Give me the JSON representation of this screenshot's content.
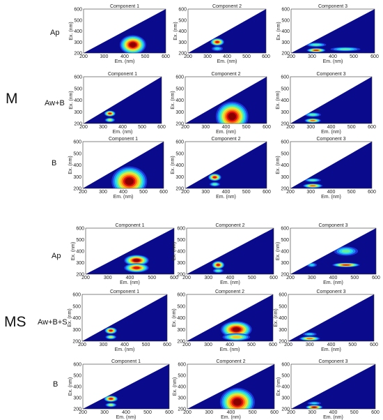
{
  "colors": {
    "background": "#0a0a8c",
    "upper_triangle": "#ffffff",
    "contour_scale": [
      "#1c34d8",
      "#1e8cf0",
      "#22d8f0",
      "#64f0a0",
      "#d6f040",
      "#ffc020",
      "#ff6a10",
      "#e01010",
      "#8a0000"
    ]
  },
  "groups": [
    {
      "label": "M",
      "rows": [
        "Ap",
        "Aw+B",
        "B"
      ]
    },
    {
      "label": "MS",
      "rows": [
        "Ap",
        "Aw+B+S",
        "B"
      ]
    }
  ],
  "chart_data": [
    {
      "type": "heatmap",
      "group": "M",
      "row": "Ap",
      "title": "Component 1",
      "xlabel": "Em. (nm)",
      "ylabel": "Ex. (nm)",
      "xlim": [
        200,
        600
      ],
      "ylim": [
        200,
        600
      ],
      "xticks": [
        200,
        300,
        400,
        500,
        600
      ],
      "yticks": [
        200,
        300,
        400,
        500,
        600
      ],
      "peaks": [
        {
          "em": 440,
          "ex": 275,
          "sx": 40,
          "sy": 55,
          "amp": 1.0
        }
      ]
    },
    {
      "type": "heatmap",
      "group": "M",
      "row": "Ap",
      "title": "Component 2",
      "xlabel": "Em. (nm)",
      "ylabel": "Ex. (nm)",
      "xlim": [
        200,
        600
      ],
      "ylim": [
        200,
        600
      ],
      "xticks": [
        200,
        300,
        400,
        500,
        600
      ],
      "yticks": [
        200,
        300,
        400,
        500,
        600
      ],
      "peaks": [
        {
          "em": 350,
          "ex": 300,
          "sx": 22,
          "sy": 22,
          "amp": 0.9
        },
        {
          "em": 350,
          "ex": 240,
          "sx": 18,
          "sy": 14,
          "amp": 0.35
        }
      ]
    },
    {
      "type": "heatmap",
      "group": "M",
      "row": "Ap",
      "title": "Component 3",
      "xlabel": "Em. (nm)",
      "ylabel": "Ex. (nm)",
      "xlim": [
        200,
        600
      ],
      "ylim": [
        200,
        600
      ],
      "xticks": [
        200,
        300,
        400,
        500,
        600
      ],
      "yticks": [
        200,
        300,
        400,
        500,
        600
      ],
      "peaks": [
        {
          "em": 320,
          "ex": 225,
          "sx": 28,
          "sy": 12,
          "amp": 0.85
        },
        {
          "em": 320,
          "ex": 275,
          "sx": 30,
          "sy": 12,
          "amp": 0.45
        },
        {
          "em": 460,
          "ex": 235,
          "sx": 45,
          "sy": 12,
          "amp": 0.4
        }
      ]
    },
    {
      "type": "heatmap",
      "group": "M",
      "row": "Aw+B",
      "title": "Component 1",
      "xlabel": "Em. (nm)",
      "ylabel": "Ex. (nm)",
      "xlim": [
        200,
        600
      ],
      "ylim": [
        200,
        600
      ],
      "xticks": [
        200,
        300,
        400,
        500,
        600
      ],
      "yticks": [
        200,
        300,
        400,
        500,
        600
      ],
      "peaks": [
        {
          "em": 335,
          "ex": 285,
          "sx": 18,
          "sy": 16,
          "amp": 0.9
        },
        {
          "em": 335,
          "ex": 230,
          "sx": 16,
          "sy": 12,
          "amp": 0.55
        }
      ]
    },
    {
      "type": "heatmap",
      "group": "M",
      "row": "Aw+B",
      "title": "Component 2",
      "xlabel": "Em. (nm)",
      "ylabel": "Ex. (nm)",
      "xlim": [
        200,
        600
      ],
      "ylim": [
        200,
        600
      ],
      "xticks": [
        200,
        300,
        400,
        500,
        600
      ],
      "yticks": [
        200,
        300,
        400,
        500,
        600
      ],
      "peaks": [
        {
          "em": 430,
          "ex": 260,
          "sx": 50,
          "sy": 80,
          "amp": 1.0
        }
      ]
    },
    {
      "type": "heatmap",
      "group": "M",
      "row": "Aw+B",
      "title": "Component 3",
      "xlabel": "Em. (nm)",
      "ylabel": "Ex. (nm)",
      "xlim": [
        200,
        600
      ],
      "ylim": [
        200,
        600
      ],
      "xticks": [
        200,
        300,
        400,
        500,
        600
      ],
      "yticks": [
        200,
        300,
        400,
        500,
        600
      ],
      "peaks": [
        {
          "em": 310,
          "ex": 225,
          "sx": 25,
          "sy": 12,
          "amp": 0.8
        },
        {
          "em": 310,
          "ex": 275,
          "sx": 25,
          "sy": 12,
          "amp": 0.45
        }
      ]
    },
    {
      "type": "heatmap",
      "group": "M",
      "row": "B",
      "title": "Component 1",
      "xlabel": "Em. (nm)",
      "ylabel": "Ex. (nm)",
      "xlim": [
        200,
        600
      ],
      "ylim": [
        200,
        600
      ],
      "xticks": [
        200,
        300,
        400,
        500,
        600
      ],
      "yticks": [
        200,
        300,
        400,
        500,
        600
      ],
      "peaks": [
        {
          "em": 430,
          "ex": 260,
          "sx": 55,
          "sy": 80,
          "amp": 1.0
        }
      ]
    },
    {
      "type": "heatmap",
      "group": "M",
      "row": "B",
      "title": "Component 2",
      "xlabel": "Em. (nm)",
      "ylabel": "Ex. (nm)",
      "xlim": [
        200,
        600
      ],
      "ylim": [
        200,
        600
      ],
      "xticks": [
        200,
        300,
        400,
        500,
        600
      ],
      "yticks": [
        200,
        300,
        400,
        500,
        600
      ],
      "peaks": [
        {
          "em": 345,
          "ex": 295,
          "sx": 20,
          "sy": 20,
          "amp": 0.85
        },
        {
          "em": 345,
          "ex": 235,
          "sx": 16,
          "sy": 12,
          "amp": 0.4
        }
      ]
    },
    {
      "type": "heatmap",
      "group": "M",
      "row": "B",
      "title": "Component 3",
      "xlabel": "Em. (nm)",
      "ylabel": "Ex. (nm)",
      "xlim": [
        200,
        600
      ],
      "ylim": [
        200,
        600
      ],
      "xticks": [
        200,
        300,
        400,
        500,
        600
      ],
      "yticks": [
        200,
        300,
        400,
        500,
        600
      ],
      "peaks": [
        {
          "em": 310,
          "ex": 222,
          "sx": 30,
          "sy": 12,
          "amp": 0.8
        },
        {
          "em": 310,
          "ex": 270,
          "sx": 25,
          "sy": 10,
          "amp": 0.4
        }
      ]
    },
    {
      "type": "heatmap",
      "group": "MS",
      "row": "Ap",
      "title": "Component 1",
      "xlabel": "Em. (nm)",
      "ylabel": "Ex. (nm)",
      "xlim": [
        200,
        600
      ],
      "ylim": [
        200,
        600
      ],
      "xticks": [
        200,
        300,
        400,
        500,
        600
      ],
      "yticks": [
        200,
        300,
        400,
        500,
        600
      ],
      "peaks": [
        {
          "em": 430,
          "ex": 320,
          "sx": 35,
          "sy": 30,
          "amp": 1.0
        },
        {
          "em": 430,
          "ex": 255,
          "sx": 35,
          "sy": 25,
          "amp": 0.9
        }
      ]
    },
    {
      "type": "heatmap",
      "group": "MS",
      "row": "Ap",
      "title": "Component 2",
      "xlabel": "Em. (nm)",
      "ylabel": "Ex. (nm)",
      "xlim": [
        200,
        600
      ],
      "ylim": [
        200,
        600
      ],
      "xticks": [
        200,
        300,
        400,
        500,
        600
      ],
      "yticks": [
        200,
        300,
        400,
        500,
        600
      ],
      "peaks": [
        {
          "em": 345,
          "ex": 280,
          "sx": 18,
          "sy": 22,
          "amp": 0.9
        },
        {
          "em": 345,
          "ex": 230,
          "sx": 15,
          "sy": 12,
          "amp": 0.4
        }
      ]
    },
    {
      "type": "heatmap",
      "group": "MS",
      "row": "Ap",
      "title": "Component 3",
      "xlabel": "Em. (nm)",
      "ylabel": "Ex. (nm)",
      "xlim": [
        200,
        600
      ],
      "ylim": [
        200,
        600
      ],
      "xticks": [
        200,
        300,
        400,
        500,
        600
      ],
      "yticks": [
        200,
        300,
        400,
        500,
        600
      ],
      "peaks": [
        {
          "em": 460,
          "ex": 280,
          "sx": 40,
          "sy": 12,
          "amp": 0.85
        },
        {
          "em": 460,
          "ex": 400,
          "sx": 35,
          "sy": 25,
          "amp": 0.45
        },
        {
          "em": 300,
          "ex": 280,
          "sx": 15,
          "sy": 12,
          "amp": 0.35
        }
      ]
    },
    {
      "type": "heatmap",
      "group": "MS",
      "row": "Aw+B+S",
      "title": "Component 1",
      "xlabel": "Em. (nm)",
      "ylabel": "Ex. (nm)",
      "xlim": [
        200,
        600
      ],
      "ylim": [
        200,
        600
      ],
      "xticks": [
        200,
        300,
        400,
        500,
        600
      ],
      "yticks": [
        200,
        300,
        400,
        500,
        600
      ],
      "peaks": [
        {
          "em": 335,
          "ex": 290,
          "sx": 18,
          "sy": 18,
          "amp": 0.9
        },
        {
          "em": 335,
          "ex": 235,
          "sx": 16,
          "sy": 12,
          "amp": 0.5
        }
      ]
    },
    {
      "type": "heatmap",
      "group": "MS",
      "row": "Aw+B+S",
      "title": "Component 2",
      "xlabel": "Em. (nm)",
      "ylabel": "Ex. (nm)",
      "xlim": [
        200,
        600
      ],
      "ylim": [
        200,
        600
      ],
      "xticks": [
        200,
        300,
        400,
        500,
        600
      ],
      "yticks": [
        200,
        300,
        400,
        500,
        600
      ],
      "peaks": [
        {
          "em": 430,
          "ex": 300,
          "sx": 45,
          "sy": 45,
          "amp": 1.0
        },
        {
          "em": 430,
          "ex": 235,
          "sx": 40,
          "sy": 20,
          "amp": 0.7
        }
      ]
    },
    {
      "type": "heatmap",
      "group": "MS",
      "row": "Aw+B+S",
      "title": "Component 3",
      "xlabel": "Em. (nm)",
      "ylabel": "Ex. (nm)",
      "xlim": [
        200,
        600
      ],
      "ylim": [
        200,
        600
      ],
      "xticks": [
        200,
        300,
        400,
        500,
        600
      ],
      "yticks": [
        200,
        300,
        400,
        500,
        600
      ],
      "peaks": [
        {
          "em": 300,
          "ex": 222,
          "sx": 30,
          "sy": 12,
          "amp": 0.75
        },
        {
          "em": 300,
          "ex": 260,
          "sx": 20,
          "sy": 10,
          "amp": 0.3
        }
      ]
    },
    {
      "type": "heatmap",
      "group": "MS",
      "row": "B",
      "title": "Component 1",
      "xlabel": "Em. (nm)",
      "ylabel": "Ex. (nm)",
      "xlim": [
        200,
        600
      ],
      "ylim": [
        200,
        600
      ],
      "xticks": [
        200,
        300,
        400,
        500,
        600
      ],
      "yticks": [
        200,
        300,
        400,
        500,
        600
      ],
      "peaks": [
        {
          "em": 330,
          "ex": 290,
          "sx": 20,
          "sy": 18,
          "amp": 0.85
        },
        {
          "em": 330,
          "ex": 235,
          "sx": 16,
          "sy": 12,
          "amp": 0.5
        }
      ]
    },
    {
      "type": "heatmap",
      "group": "MS",
      "row": "B",
      "title": "Component 2",
      "xlabel": "Em. (nm)",
      "ylabel": "Ex. (nm)",
      "xlim": [
        200,
        600
      ],
      "ylim": [
        200,
        600
      ],
      "xticks": [
        200,
        300,
        400,
        500,
        600
      ],
      "yticks": [
        200,
        300,
        400,
        500,
        600
      ],
      "peaks": [
        {
          "em": 430,
          "ex": 260,
          "sx": 50,
          "sy": 80,
          "amp": 1.0
        }
      ]
    },
    {
      "type": "heatmap",
      "group": "MS",
      "row": "B",
      "title": "Component 3",
      "xlabel": "Em. (nm)",
      "ylabel": "Ex. (nm)",
      "xlim": [
        200,
        600
      ],
      "ylim": [
        200,
        600
      ],
      "xticks": [
        200,
        300,
        400,
        500,
        600
      ],
      "yticks": [
        200,
        300,
        400,
        500,
        600
      ],
      "peaks": [
        {
          "em": 310,
          "ex": 215,
          "sx": 25,
          "sy": 12,
          "amp": 1.0
        },
        {
          "em": 310,
          "ex": 250,
          "sx": 20,
          "sy": 10,
          "amp": 0.35
        }
      ]
    }
  ]
}
